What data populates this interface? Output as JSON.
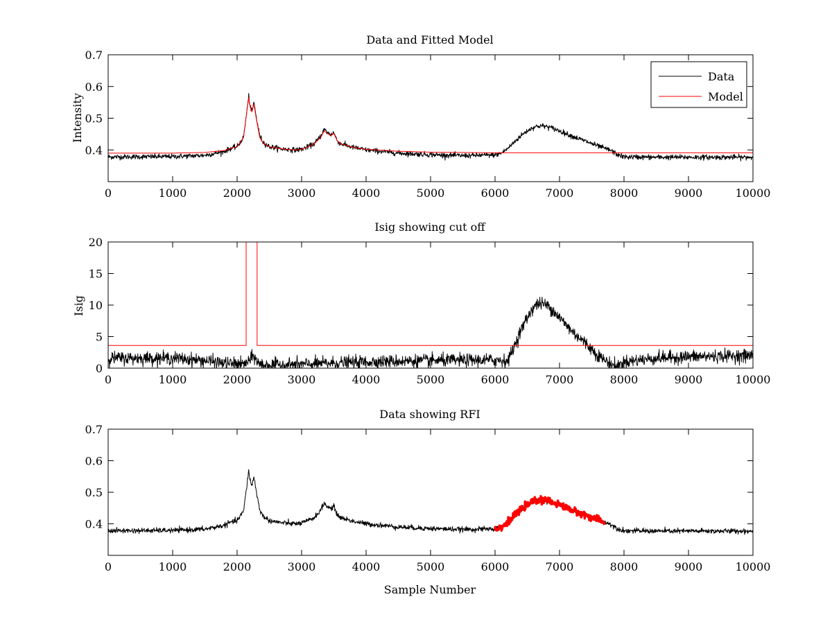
{
  "chart_data": [
    {
      "type": "line",
      "title": "Data and Fitted Model",
      "xlabel": "",
      "ylabel": "Intensity",
      "xlim": [
        0,
        10000
      ],
      "ylim": [
        0.3,
        0.7
      ],
      "xticks": [
        "0",
        "1000",
        "2000",
        "3000",
        "4000",
        "5000",
        "6000",
        "7000",
        "8000",
        "9000",
        "10000"
      ],
      "yticks": [
        "0.4",
        "0.5",
        "0.6",
        "0.7"
      ],
      "grid": false,
      "legend_position": "top-right",
      "series": [
        {
          "name": "Data",
          "color": "#000000",
          "noise": 0.004,
          "x": [
            0,
            1000,
            1500,
            1800,
            1900,
            2000,
            2100,
            2150,
            2180,
            2200,
            2230,
            2260,
            2300,
            2350,
            2400,
            2500,
            2700,
            2900,
            3000,
            3100,
            3200,
            3300,
            3350,
            3400,
            3450,
            3500,
            3550,
            3600,
            3700,
            3800,
            4000,
            4500,
            5000,
            5500,
            6000,
            6100,
            6200,
            6300,
            6400,
            6500,
            6600,
            6700,
            6800,
            6900,
            7000,
            7200,
            7400,
            7600,
            7700,
            7800,
            7900,
            8000,
            8500,
            9000,
            9500,
            10000
          ],
          "y": [
            0.378,
            0.379,
            0.383,
            0.395,
            0.405,
            0.41,
            0.44,
            0.52,
            0.57,
            0.54,
            0.52,
            0.55,
            0.5,
            0.445,
            0.425,
            0.41,
            0.403,
            0.4,
            0.402,
            0.41,
            0.42,
            0.445,
            0.465,
            0.455,
            0.448,
            0.455,
            0.43,
            0.42,
            0.414,
            0.408,
            0.4,
            0.39,
            0.385,
            0.382,
            0.384,
            0.39,
            0.405,
            0.425,
            0.445,
            0.46,
            0.472,
            0.476,
            0.474,
            0.468,
            0.46,
            0.443,
            0.428,
            0.412,
            0.405,
            0.398,
            0.385,
            0.378,
            0.377,
            0.377,
            0.377,
            0.377
          ]
        },
        {
          "name": "Model",
          "color": "#ff0000",
          "noise": 0,
          "x": [
            0,
            1000,
            1500,
            1800,
            1900,
            2000,
            2100,
            2150,
            2180,
            2200,
            2230,
            2260,
            2300,
            2350,
            2400,
            2500,
            2700,
            2900,
            3000,
            3100,
            3200,
            3300,
            3350,
            3400,
            3450,
            3500,
            3550,
            3600,
            3700,
            3800,
            4000,
            4500,
            5000,
            5500,
            6000,
            6500,
            7000,
            7500,
            8000,
            9000,
            10000
          ],
          "y": [
            0.39,
            0.39,
            0.392,
            0.398,
            0.405,
            0.41,
            0.44,
            0.52,
            0.565,
            0.54,
            0.52,
            0.545,
            0.495,
            0.44,
            0.422,
            0.41,
            0.403,
            0.4,
            0.402,
            0.41,
            0.42,
            0.44,
            0.46,
            0.452,
            0.445,
            0.452,
            0.43,
            0.42,
            0.414,
            0.408,
            0.402,
            0.396,
            0.393,
            0.392,
            0.391,
            0.391,
            0.391,
            0.391,
            0.391,
            0.391,
            0.391
          ]
        }
      ]
    },
    {
      "type": "line",
      "title": "Isig showing cut off",
      "xlabel": "",
      "ylabel": "Isig",
      "xlim": [
        0,
        10000
      ],
      "ylim": [
        0,
        20
      ],
      "xticks": [
        "0",
        "1000",
        "2000",
        "3000",
        "4000",
        "5000",
        "6000",
        "7000",
        "8000",
        "9000",
        "10000"
      ],
      "yticks": [
        "0",
        "5",
        "10",
        "15",
        "20"
      ],
      "grid": false,
      "series": [
        {
          "color": "#000000",
          "noise": 0.5,
          "x": [
            0,
            1000,
            1500,
            1800,
            2100,
            2200,
            2250,
            2350,
            2500,
            3000,
            4000,
            5000,
            6000,
            6200,
            6300,
            6400,
            6500,
            6600,
            6700,
            6800,
            6900,
            7000,
            7200,
            7400,
            7600,
            7800,
            7900,
            8000,
            8500,
            9000,
            9500,
            10000
          ],
          "y": [
            1.6,
            1.6,
            1.2,
            0.8,
            0.6,
            1.2,
            2.0,
            0.6,
            0.5,
            0.6,
            1.0,
            1.2,
            1.3,
            1.2,
            3.5,
            6.0,
            8.0,
            9.8,
            10.3,
            10.0,
            9.2,
            8.0,
            5.8,
            4.0,
            2.0,
            0.6,
            0.3,
            1.0,
            1.6,
            1.8,
            1.9,
            2.0
          ]
        },
        {
          "color": "#ff0000",
          "noise": 0,
          "x": [
            0,
            2140,
            2140,
            2310,
            2310,
            10000
          ],
          "y": [
            3.6,
            3.6,
            20,
            20,
            3.6,
            3.6
          ]
        }
      ]
    },
    {
      "type": "line",
      "title": "Data showing RFI",
      "xlabel": "Sample Number",
      "ylabel": "",
      "xlim": [
        0,
        10000
      ],
      "ylim": [
        0.3,
        0.7
      ],
      "xticks": [
        "0",
        "1000",
        "2000",
        "3000",
        "4000",
        "5000",
        "6000",
        "7000",
        "8000",
        "9000",
        "10000"
      ],
      "yticks": [
        "0.4",
        "0.5",
        "0.6",
        "0.7"
      ],
      "grid": false,
      "series": [
        {
          "color": "#000000",
          "noise": 0.004,
          "x": [
            0,
            1000,
            1500,
            1800,
            1900,
            2000,
            2100,
            2150,
            2180,
            2200,
            2230,
            2260,
            2300,
            2350,
            2400,
            2500,
            2700,
            2900,
            3000,
            3100,
            3200,
            3300,
            3350,
            3400,
            3450,
            3500,
            3550,
            3600,
            3700,
            3800,
            4000,
            4500,
            5000,
            5500,
            6000,
            6100,
            6200,
            6300,
            6400,
            6500,
            6600,
            6700,
            6800,
            6900,
            7000,
            7200,
            7400,
            7600,
            7700,
            7800,
            7900,
            8000,
            8500,
            9000,
            9500,
            10000
          ],
          "y": [
            0.378,
            0.379,
            0.383,
            0.395,
            0.405,
            0.41,
            0.44,
            0.52,
            0.57,
            0.54,
            0.52,
            0.55,
            0.5,
            0.445,
            0.425,
            0.41,
            0.403,
            0.4,
            0.402,
            0.41,
            0.42,
            0.445,
            0.465,
            0.455,
            0.448,
            0.455,
            0.43,
            0.42,
            0.414,
            0.408,
            0.4,
            0.39,
            0.385,
            0.382,
            0.384,
            0.39,
            0.405,
            0.425,
            0.445,
            0.46,
            0.472,
            0.476,
            0.474,
            0.468,
            0.46,
            0.443,
            0.428,
            0.412,
            0.405,
            0.398,
            0.385,
            0.378,
            0.377,
            0.377,
            0.377,
            0.377
          ]
        },
        {
          "color": "#ff0000",
          "noise": 0.005,
          "marker": "point",
          "x": [
            6000,
            6100,
            6200,
            6300,
            6400,
            6500,
            6600,
            6700,
            6800,
            6900,
            7000,
            7200,
            7400,
            7600,
            7700
          ],
          "y": [
            0.384,
            0.39,
            0.405,
            0.425,
            0.445,
            0.46,
            0.472,
            0.476,
            0.474,
            0.468,
            0.46,
            0.443,
            0.428,
            0.412,
            0.405
          ]
        }
      ]
    }
  ]
}
